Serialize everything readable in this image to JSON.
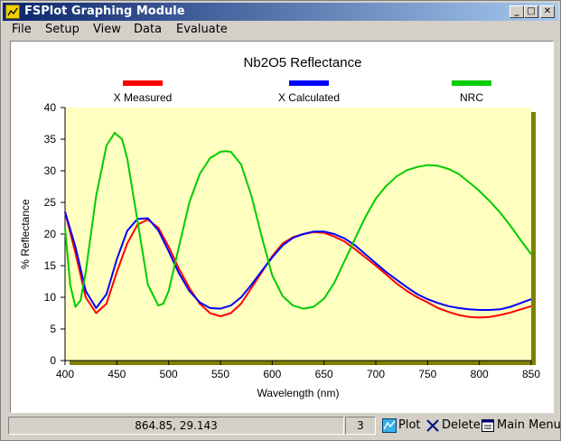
{
  "window": {
    "title": "FSPlot Graphing Module",
    "minimize": "_",
    "maximize": "□",
    "close": "✕"
  },
  "menu": [
    "File",
    "Setup",
    "View",
    "Data",
    "Evaluate"
  ],
  "chart_data": {
    "type": "line",
    "title": "Nb2O5 Reflectance",
    "xlabel": "Wavelength (nm)",
    "ylabel": "% Reflectance",
    "xlim": [
      400,
      850
    ],
    "ylim": [
      0,
      40
    ],
    "xticks": [
      400,
      450,
      500,
      550,
      600,
      650,
      700,
      750,
      800,
      850
    ],
    "yticks": [
      0,
      5,
      10,
      15,
      20,
      25,
      30,
      35,
      40
    ],
    "legend_position": "top",
    "series": [
      {
        "name": "X Measured",
        "color": "#ff0000",
        "x": [
          400,
          410,
          420,
          430,
          440,
          450,
          460,
          470,
          480,
          490,
          500,
          510,
          520,
          530,
          540,
          550,
          560,
          570,
          580,
          590,
          600,
          610,
          620,
          630,
          640,
          650,
          660,
          670,
          680,
          690,
          700,
          710,
          720,
          730,
          740,
          750,
          760,
          770,
          780,
          790,
          800,
          810,
          820,
          830,
          840,
          850
        ],
        "y": [
          23.5,
          17,
          10,
          7.5,
          9,
          14,
          18.5,
          21.5,
          22.3,
          21,
          18,
          14.5,
          11.5,
          9,
          7.5,
          7,
          7.5,
          9,
          11.5,
          14,
          16.5,
          18.5,
          19.5,
          20,
          20.3,
          20.2,
          19.6,
          18.8,
          17.6,
          16.3,
          15,
          13.6,
          12.2,
          11,
          10,
          9.2,
          8.3,
          7.7,
          7.2,
          6.9,
          6.8,
          6.9,
          7.2,
          7.6,
          8.1,
          8.6
        ]
      },
      {
        "name": "X Calculated",
        "color": "#0000ff",
        "x": [
          400,
          410,
          420,
          430,
          440,
          450,
          460,
          470,
          480,
          490,
          500,
          510,
          520,
          530,
          540,
          550,
          560,
          570,
          580,
          590,
          600,
          610,
          620,
          630,
          640,
          650,
          660,
          670,
          680,
          690,
          700,
          710,
          720,
          730,
          740,
          750,
          760,
          770,
          780,
          790,
          800,
          810,
          820,
          830,
          840,
          850
        ],
        "y": [
          23.5,
          18,
          11,
          8.3,
          10.5,
          16,
          20.5,
          22.4,
          22.5,
          20.6,
          17.3,
          13.8,
          11,
          9.2,
          8.3,
          8.2,
          8.7,
          10,
          12,
          14.2,
          16.3,
          18.2,
          19.4,
          20,
          20.4,
          20.4,
          20,
          19.3,
          18.2,
          16.8,
          15.4,
          14,
          12.8,
          11.6,
          10.5,
          9.7,
          9.1,
          8.6,
          8.3,
          8.1,
          8,
          8,
          8.1,
          8.5,
          9.1,
          9.7
        ]
      },
      {
        "name": "NRC",
        "color": "#00cc00",
        "x": [
          400,
          405,
          410,
          415,
          420,
          430,
          440,
          448,
          455,
          460,
          470,
          480,
          490,
          495,
          500,
          510,
          520,
          530,
          540,
          550,
          555,
          560,
          570,
          580,
          590,
          600,
          610,
          620,
          630,
          640,
          650,
          660,
          670,
          680,
          690,
          700,
          710,
          720,
          730,
          740,
          750,
          760,
          770,
          780,
          790,
          800,
          810,
          820,
          830,
          840,
          850
        ],
        "y": [
          21,
          12,
          8.5,
          9.5,
          14,
          26,
          34,
          36,
          35,
          32,
          22,
          12,
          8.7,
          9,
          11,
          18,
          25,
          29.5,
          32,
          33,
          33.1,
          33,
          31,
          26,
          19.5,
          13.5,
          10.2,
          8.7,
          8.2,
          8.5,
          9.8,
          12.3,
          15.8,
          19.3,
          22.7,
          25.6,
          27.6,
          29.1,
          30.1,
          30.6,
          30.9,
          30.8,
          30.3,
          29.5,
          28.2,
          26.8,
          25.2,
          23.4,
          21.3,
          19,
          16.8
        ]
      }
    ]
  },
  "status": {
    "coords": "864.85, 29.143",
    "count": "3"
  },
  "buttons": {
    "plot": "Plot",
    "delete": "Delete",
    "main_menu": "Main Menu"
  }
}
